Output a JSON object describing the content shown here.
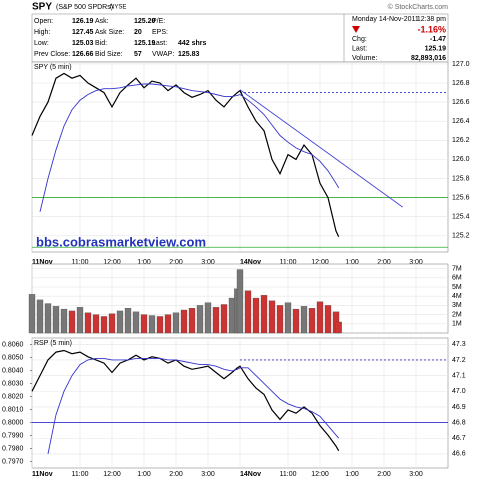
{
  "header": {
    "symbol": "SPY",
    "name": "(S&P 500 SPDRs)",
    "exchange": "NYSE",
    "credit": "© StockCharts.com",
    "quote": [
      [
        {
          "label": "Open:",
          "value": "126.19"
        },
        {
          "label": "Ask:",
          "value": "125.20"
        },
        {
          "label": "P/E:"
        }
      ],
      [
        {
          "label": "High:",
          "value": "127.45"
        },
        {
          "label": "Ask Size:",
          "value": "20"
        },
        {
          "label": "EPS:"
        }
      ],
      [
        {
          "label": "Low:",
          "value": "125.03"
        },
        {
          "label": "Bid:",
          "value": "125.19"
        },
        {
          "label": "Last:",
          "value": "442 shrs"
        }
      ],
      [
        {
          "label": "Prev Close:",
          "value": "126.66"
        },
        {
          "label": "Bid Size:",
          "value": "57"
        },
        {
          "label": "VWAP:",
          "value": "125.83"
        }
      ]
    ],
    "date": "Monday  14-Nov-2011",
    "time": "12:38 pm",
    "change_pct": "-1.16%",
    "summary": [
      {
        "label": "Chg:",
        "value": "-1.47"
      },
      {
        "label": "Last:",
        "value": "125.19"
      },
      {
        "label": "Volume:",
        "value": "82,893,016"
      }
    ]
  },
  "chart_data": [
    {
      "type": "line",
      "title": "SPY (5 min)",
      "annotation": "bbs.cobrasmarketview.com",
      "x": [
        0,
        3,
        6,
        9,
        12,
        15,
        18,
        21,
        24,
        27,
        30,
        33,
        36,
        39,
        42,
        45,
        48,
        51,
        54,
        57,
        60,
        63,
        66,
        69,
        72,
        75,
        77,
        78,
        81,
        84,
        87,
        90,
        93,
        96,
        99,
        102,
        105,
        108,
        111,
        114,
        115
      ],
      "series": [
        {
          "color": "#000000",
          "values": [
            126.25,
            126.45,
            126.6,
            126.85,
            126.9,
            126.85,
            126.88,
            126.8,
            126.75,
            126.7,
            126.55,
            126.7,
            126.78,
            126.85,
            126.75,
            126.82,
            126.8,
            126.72,
            126.78,
            126.7,
            126.65,
            126.68,
            126.72,
            126.62,
            126.55,
            126.65,
            126.7,
            126.72,
            126.55,
            126.4,
            126.3,
            126.0,
            125.85,
            126.05,
            126.0,
            126.15,
            126.05,
            125.75,
            125.6,
            125.25,
            125.19
          ]
        },
        {
          "color": "#3333cc",
          "values": [
            null,
            125.45,
            125.8,
            126.1,
            126.35,
            126.52,
            126.62,
            126.68,
            126.72,
            126.74,
            126.74,
            126.75,
            126.77,
            126.78,
            126.79,
            126.79,
            126.78,
            126.77,
            126.76,
            126.74,
            126.72,
            126.71,
            126.7,
            126.68,
            126.66,
            126.66,
            126.67,
            126.68,
            126.62,
            126.55,
            126.47,
            126.36,
            126.25,
            126.18,
            126.12,
            126.08,
            126.05,
            125.98,
            125.88,
            125.75,
            125.7
          ]
        }
      ],
      "trendline": {
        "x": [
          78,
          139
        ],
        "values": [
          126.73,
          125.5
        ],
        "color": "#4444dd"
      },
      "hlines": [
        {
          "value": 126.7,
          "from": 78,
          "color": "#3333cc",
          "dashed": true
        },
        {
          "value": 125.6,
          "color": "#33aa33"
        },
        {
          "value": 125.08,
          "color": "#33aa33"
        }
      ],
      "xlim": [
        0,
        156
      ],
      "ylim": [
        125.03,
        127.02
      ],
      "xticks": [
        {
          "value": 0,
          "label": "11Nov"
        },
        {
          "value": 18,
          "label": "11:00"
        },
        {
          "value": 30,
          "label": "12:00"
        },
        {
          "value": 42,
          "label": "1:00"
        },
        {
          "value": 54,
          "label": "2:00"
        },
        {
          "value": 66,
          "label": "3:00"
        },
        {
          "value": 78,
          "label": "14Nov"
        },
        {
          "value": 96,
          "label": "11:00"
        },
        {
          "value": 108,
          "label": "12:00"
        },
        {
          "value": 120,
          "label": "1:00"
        },
        {
          "value": 132,
          "label": "2:00"
        },
        {
          "value": 144,
          "label": "3:00"
        }
      ],
      "yticks": [
        125.2,
        125.4,
        125.6,
        125.8,
        {
          "value": 126,
          "label": "126.0"
        },
        126.2,
        126.4,
        126.6,
        126.8,
        {
          "value": 127,
          "label": "127.0"
        }
      ],
      "grid": true
    },
    {
      "type": "bar",
      "up_color": "#777777",
      "down_color": "#cc3333",
      "x": [
        0,
        3,
        6,
        9,
        12,
        15,
        18,
        21,
        24,
        27,
        30,
        33,
        36,
        39,
        42,
        45,
        48,
        51,
        54,
        57,
        60,
        63,
        66,
        69,
        72,
        75,
        77,
        78,
        81,
        84,
        87,
        90,
        93,
        96,
        99,
        102,
        105,
        108,
        111,
        114,
        115
      ],
      "values": [
        4.2,
        3.6,
        3.2,
        2.9,
        2.6,
        2.4,
        2.8,
        2.2,
        2.0,
        1.8,
        2.1,
        2.4,
        2.7,
        2.3,
        2.0,
        1.9,
        1.8,
        2.0,
        2.2,
        2.5,
        2.7,
        3.0,
        3.3,
        2.8,
        3.1,
        3.8,
        4.8,
        6.9,
        4.6,
        3.8,
        4.1,
        3.5,
        3.0,
        3.3,
        2.6,
        2.9,
        2.7,
        3.4,
        3.0,
        2.3,
        1.2
      ],
      "xlim": [
        0,
        156
      ],
      "ylim": [
        0,
        7.5
      ],
      "yticks": [
        {
          "value": 1,
          "label": "1M"
        },
        {
          "value": 2,
          "label": "2M"
        },
        {
          "value": 3,
          "label": "3M"
        },
        {
          "value": 4,
          "label": "4M"
        },
        {
          "value": 5,
          "label": "5M"
        },
        {
          "value": 6,
          "label": "6M"
        },
        {
          "value": 7,
          "label": "7M"
        }
      ],
      "grid": true
    },
    {
      "type": "line",
      "title": "RSP (5 min)",
      "x": [
        0,
        3,
        6,
        9,
        12,
        15,
        18,
        21,
        24,
        27,
        30,
        33,
        36,
        39,
        42,
        45,
        48,
        51,
        54,
        57,
        60,
        63,
        66,
        69,
        72,
        75,
        77,
        78,
        81,
        84,
        87,
        90,
        93,
        96,
        99,
        102,
        105,
        108,
        111,
        114,
        115
      ],
      "series": [
        {
          "color": "#000000",
          "axis": "y2",
          "values": [
            47.0,
            47.1,
            47.2,
            47.25,
            47.26,
            47.24,
            47.25,
            47.22,
            47.2,
            47.18,
            47.12,
            47.18,
            47.2,
            47.23,
            47.2,
            47.22,
            47.21,
            47.18,
            47.2,
            47.16,
            47.14,
            47.15,
            47.16,
            47.12,
            47.08,
            47.12,
            47.15,
            47.16,
            47.08,
            47.02,
            46.98,
            46.88,
            46.82,
            46.88,
            46.86,
            46.9,
            46.86,
            46.78,
            46.72,
            46.65,
            46.62
          ]
        },
        {
          "color": "#3333cc",
          "axis": "y2",
          "values": [
            null,
            null,
            46.6,
            46.85,
            47.0,
            47.1,
            47.17,
            47.2,
            47.21,
            47.21,
            47.2,
            47.2,
            47.2,
            47.21,
            47.21,
            47.21,
            47.21,
            47.2,
            47.2,
            47.19,
            47.18,
            47.17,
            47.17,
            47.16,
            47.14,
            47.13,
            47.14,
            47.15,
            47.15,
            47.1,
            47.05,
            47.0,
            46.95,
            46.92,
            46.9,
            46.89,
            46.87,
            46.84,
            46.78,
            46.72,
            46.7
          ]
        }
      ],
      "hlines": [
        {
          "value": 47.2,
          "from": 78,
          "color": "#3333cc",
          "dashed": true,
          "axis": "y2"
        },
        {
          "value": 46.8,
          "color": "#3333cc",
          "axis": "y2"
        }
      ],
      "xlim": [
        0,
        156
      ],
      "ylim": [
        0.7965,
        0.8065
      ],
      "y2lim": [
        46.51,
        47.34
      ],
      "xticks": [
        {
          "value": 0,
          "label": "11Nov"
        },
        {
          "value": 18,
          "label": "11:00"
        },
        {
          "value": 30,
          "label": "12:00"
        },
        {
          "value": 42,
          "label": "1:00"
        },
        {
          "value": 54,
          "label": "2:00"
        },
        {
          "value": 66,
          "label": "3:00"
        },
        {
          "value": 78,
          "label": "14Nov"
        },
        {
          "value": 96,
          "label": "11:00"
        },
        {
          "value": 108,
          "label": "12:00"
        },
        {
          "value": 120,
          "label": "1:00"
        },
        {
          "value": 132,
          "label": "2:00"
        },
        {
          "value": 144,
          "label": "3:00"
        }
      ],
      "yticks": [
        {
          "value": 0.797,
          "label": "0.7970"
        },
        {
          "value": 0.798,
          "label": "0.7980"
        },
        {
          "value": 0.799,
          "label": "0.7990"
        },
        {
          "value": 0.8,
          "label": "0.8000"
        },
        {
          "value": 0.801,
          "label": "0.8010"
        },
        {
          "value": 0.802,
          "label": "0.8020"
        },
        {
          "value": 0.803,
          "label": "0.8030"
        },
        {
          "value": 0.804,
          "label": "0.8040"
        },
        {
          "value": 0.805,
          "label": "0.8050"
        },
        {
          "value": 0.806,
          "label": "0.8060"
        }
      ],
      "y2ticks": [
        46.6,
        46.7,
        46.8,
        46.9,
        {
          "value": 47,
          "label": "47.0"
        },
        47.1,
        47.2,
        47.3
      ],
      "grid": true
    }
  ]
}
